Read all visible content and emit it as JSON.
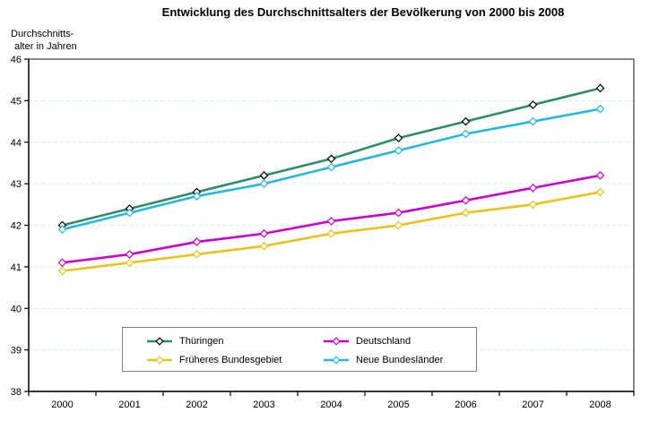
{
  "title": "Entwicklung des Durchschnittsalters der Bevölkerung von 2000 bis 2008",
  "y_axis_title": {
    "line1": "Durchschnitts-",
    "line2": "alter in Jahren"
  },
  "colors": {
    "grid": "#CDEFEF",
    "plot_border": "#404040",
    "axis": "#000000",
    "legend_border": "#808080",
    "background": "#FFFFFF"
  },
  "chart_data": {
    "type": "line",
    "x": [
      "2000",
      "2001",
      "2002",
      "2003",
      "2004",
      "2005",
      "2006",
      "2007",
      "2008"
    ],
    "title": "Entwicklung des Durchschnittsalters der Bevölkerung von 2000 bis 2008",
    "xlabel": "",
    "ylabel": "Durchschnitts- alter in Jahren",
    "ylim": [
      38,
      46
    ],
    "ytick_interval": 1,
    "grid": "horizontal-dashed",
    "legend_position": "bottom-inside",
    "marker": "diamond-white-fill",
    "series": [
      {
        "name": "Thüringen",
        "color": "#2E8B6E",
        "marker_outline": "#000000",
        "values": [
          42.0,
          42.4,
          42.8,
          43.2,
          43.6,
          44.1,
          44.5,
          44.9,
          45.3
        ]
      },
      {
        "name": "Deutschland",
        "color": "#CC00CC",
        "marker_outline": "#CC00CC",
        "values": [
          41.1,
          41.3,
          41.6,
          41.8,
          42.1,
          42.3,
          42.6,
          42.9,
          43.2
        ]
      },
      {
        "name": "Früheres Bundesgebiet",
        "color": "#E8C319",
        "marker_outline": "#E8C319",
        "values": [
          40.9,
          41.1,
          41.3,
          41.5,
          41.8,
          42.0,
          42.3,
          42.5,
          42.8
        ]
      },
      {
        "name": "Neue Bundesländer",
        "color": "#25B8D8",
        "marker_outline": "#25B8D8",
        "values": [
          41.9,
          42.3,
          42.7,
          43.0,
          43.4,
          43.8,
          44.2,
          44.5,
          44.8
        ]
      }
    ]
  }
}
